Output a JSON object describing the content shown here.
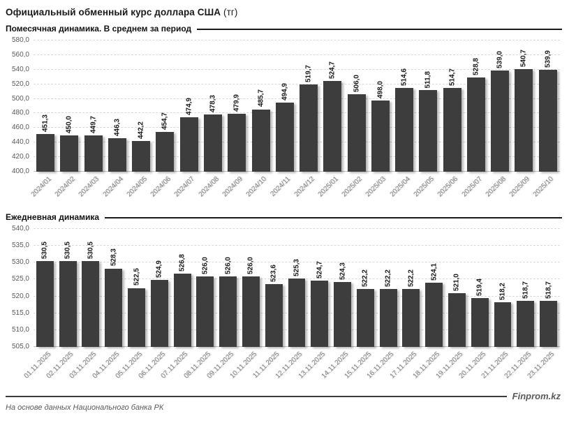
{
  "page": {
    "title": "Официальный обменный курс доллара США",
    "title_suffix": "(тг)"
  },
  "footer": {
    "source": "На основе данных Национального банка РК",
    "brand": "Finprom.kz"
  },
  "colors": {
    "bar": "#3d3d3d",
    "gridline": "#d9d9d9",
    "axis_text": "#595959",
    "x_label": "#808080",
    "header_rule": "#1a1a1a"
  },
  "chart_data": [
    {
      "type": "bar",
      "title": "Помесячная динамика. В среднем за период",
      "categories": [
        "2024/01",
        "2024/02",
        "2024/03",
        "2024/04",
        "2024/05",
        "2024/06",
        "2024/07",
        "2024/08",
        "2024/09",
        "2024/10",
        "2024/11",
        "2024/12",
        "2025/01",
        "2025/02",
        "2025/03",
        "2025/04",
        "2025/05",
        "2025/06",
        "2025/07",
        "2025/08",
        "2025/09",
        "2025/10"
      ],
      "values": [
        451.3,
        450.0,
        449.7,
        446.3,
        442.2,
        454.7,
        474.9,
        478.3,
        479.9,
        485.7,
        494.9,
        519.7,
        524.7,
        506.0,
        498.0,
        514.6,
        511.8,
        514.7,
        528.8,
        539.0,
        540.7,
        539.9
      ],
      "labels": [
        "451,3",
        "450,0",
        "449,7",
        "446,3",
        "442,2",
        "454,7",
        "474,9",
        "478,3",
        "479,9",
        "485,7",
        "494,9",
        "519,7",
        "524,7",
        "506,0",
        "498,0",
        "514,6",
        "511,8",
        "514,7",
        "528,8",
        "539,0",
        "540,7",
        "539,9"
      ],
      "xlabel": "",
      "ylabel": "",
      "ylim": [
        400,
        580
      ],
      "yticks": [
        "400,0",
        "420,0",
        "440,0",
        "460,0",
        "480,0",
        "500,0",
        "520,0",
        "540,0",
        "560,0",
        "580,0"
      ],
      "grid": "horizontal dashed",
      "legend": "none"
    },
    {
      "type": "bar",
      "title": "Ежедневная динамика",
      "categories": [
        "01.11.2025",
        "02.11.2025",
        "03.11.2025",
        "04.11.2025",
        "05.11.2025",
        "06.11.2025",
        "07.11.2025",
        "08.11.2025",
        "09.11.2025",
        "10.11.2025",
        "11.11.2025",
        "12.11.2025",
        "13.11.2025",
        "14.11.2025",
        "15.11.2025",
        "16.11.2025",
        "17.11.2025",
        "18.11.2025",
        "19.11.2025",
        "20.11.2025",
        "21.11.2025",
        "22.11.2025",
        "23.11.2025"
      ],
      "values": [
        530.5,
        530.5,
        530.5,
        528.3,
        522.5,
        524.9,
        526.8,
        526.0,
        526.0,
        526.0,
        523.6,
        525.3,
        524.7,
        524.3,
        522.2,
        522.2,
        522.2,
        524.1,
        521.0,
        519.4,
        518.2,
        518.7,
        518.7
      ],
      "labels": [
        "530,5",
        "530,5",
        "530,5",
        "528,3",
        "522,5",
        "524,9",
        "526,8",
        "526,0",
        "526,0",
        "526,0",
        "523,6",
        "525,3",
        "524,7",
        "524,3",
        "522,2",
        "522,2",
        "522,2",
        "524,1",
        "521,0",
        "519,4",
        "518,2",
        "518,7",
        "518,7"
      ],
      "xlabel": "",
      "ylabel": "",
      "ylim": [
        505,
        540
      ],
      "yticks": [
        "505,0",
        "510,0",
        "515,0",
        "520,0",
        "525,0",
        "530,0",
        "535,0",
        "540,0"
      ],
      "grid": "horizontal dashed",
      "legend": "none"
    }
  ]
}
